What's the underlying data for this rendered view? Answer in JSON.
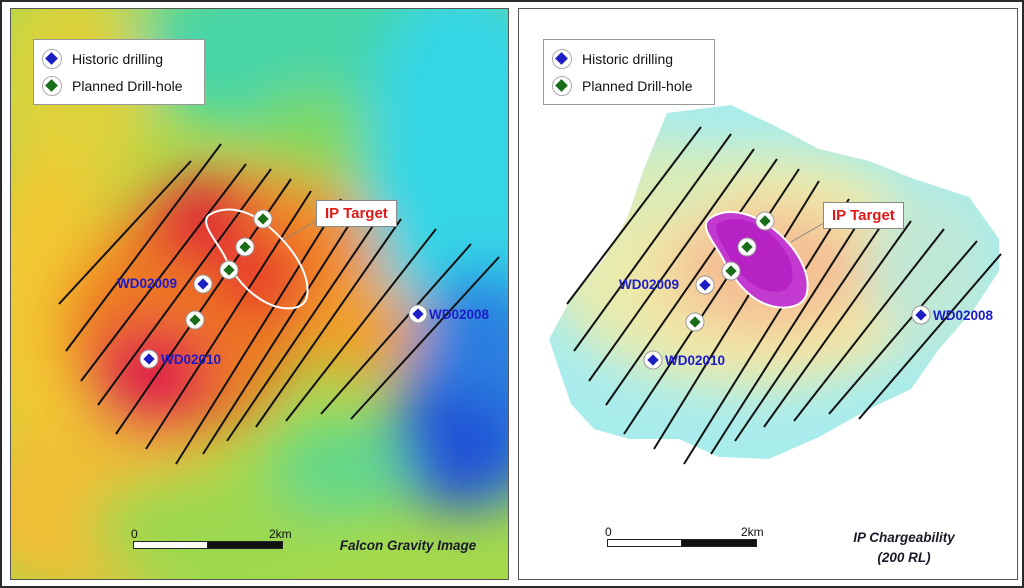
{
  "legend": {
    "historic": "Historic drilling",
    "planned": "Planned Drill-hole"
  },
  "ip_target_label": "IP Target",
  "wells": {
    "w2009": "WD02009",
    "w2008": "WD02008",
    "w2010": "WD02010"
  },
  "scale": {
    "zero": "0",
    "max": "2km"
  },
  "left_caption": "Falcon Gravity Image",
  "right_caption": {
    "line1": "IP Chargeability",
    "line2": "(200 RL)"
  },
  "colors": {
    "historic_marker": "#1b1fc4",
    "planned_marker": "#1a6e1a",
    "target_outline": "#ffffff",
    "target_label": "#e01818"
  }
}
